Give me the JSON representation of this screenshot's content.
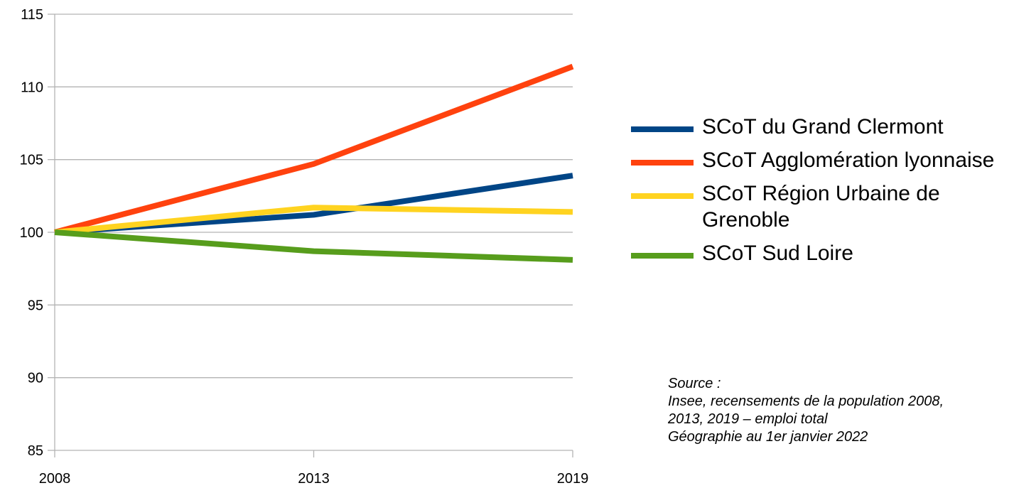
{
  "chart_data": {
    "type": "line",
    "x": [
      "2008",
      "2013",
      "2019"
    ],
    "ylim": [
      85,
      115
    ],
    "yticks": [
      85,
      90,
      95,
      100,
      105,
      110,
      115
    ],
    "grid": true,
    "legend_position": "right",
    "series": [
      {
        "name": "SCoT du Grand Clermont",
        "color": "#004586",
        "values": [
          100,
          101.2,
          103.9
        ]
      },
      {
        "name": "SCoT Agglomération lyonnaise",
        "color": "#ff420e",
        "values": [
          100,
          104.7,
          111.4
        ]
      },
      {
        "name": "SCoT Région Urbaine de Grenoble",
        "color": "#ffd320",
        "values": [
          100,
          101.7,
          101.4
        ]
      },
      {
        "name": "SCoT Sud Loire",
        "color": "#579d1c",
        "values": [
          100,
          98.7,
          98.1
        ]
      }
    ]
  },
  "source": {
    "line1": "Source :",
    "line2": "Insee, recensements de la population 2008,",
    "line3": "2013, 2019 – emploi total",
    "line4": "Géographie au 1er janvier 2022"
  }
}
